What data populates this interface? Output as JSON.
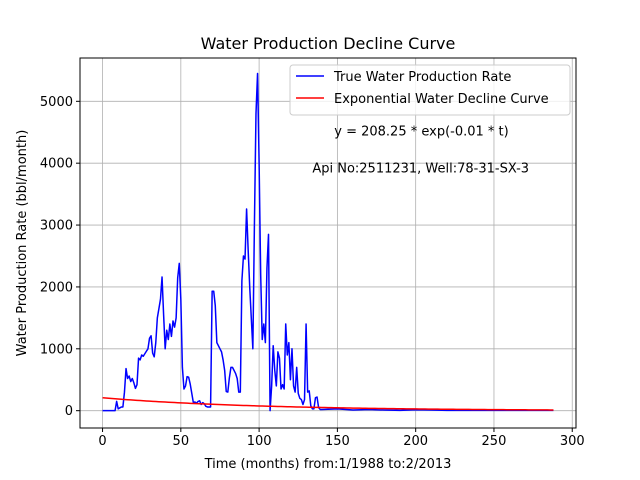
{
  "chart_data": {
    "type": "line",
    "title": "Water Production Decline Curve",
    "xlabel": "Time (months) from:1/1988 to:2/2013",
    "ylabel": "Water Production Rate (bbl/month)",
    "xlim": [
      -14.4,
      302.4
    ],
    "ylim": [
      -280,
      5700
    ],
    "xticks": [
      0,
      50,
      100,
      150,
      200,
      250,
      300
    ],
    "yticks": [
      0,
      1000,
      2000,
      3000,
      4000,
      5000
    ],
    "grid": true,
    "legend_position": "top-right",
    "annotations": [
      {
        "text": "y = 208.25 * exp(-0.01 * t)",
        "x": 148,
        "y": 4450
      },
      {
        "text": "Api No:2511231, Well:78-31-SX-3",
        "x": 134,
        "y": 3850
      }
    ],
    "series": [
      {
        "name": "True Water Production Rate",
        "color": "#0000ff",
        "points": [
          [
            0,
            0
          ],
          [
            5,
            0
          ],
          [
            8,
            0
          ],
          [
            9,
            150
          ],
          [
            10,
            30
          ],
          [
            12,
            60
          ],
          [
            13,
            60
          ],
          [
            14,
            300
          ],
          [
            15,
            680
          ],
          [
            16,
            520
          ],
          [
            17,
            560
          ],
          [
            18,
            470
          ],
          [
            19,
            520
          ],
          [
            20,
            450
          ],
          [
            21,
            360
          ],
          [
            22,
            420
          ],
          [
            23,
            850
          ],
          [
            24,
            820
          ],
          [
            25,
            900
          ],
          [
            26,
            880
          ],
          [
            27,
            920
          ],
          [
            28,
            960
          ],
          [
            29,
            1000
          ],
          [
            30,
            1170
          ],
          [
            31,
            1210
          ],
          [
            32,
            930
          ],
          [
            33,
            870
          ],
          [
            34,
            1100
          ],
          [
            35,
            1500
          ],
          [
            36,
            1650
          ],
          [
            37,
            1800
          ],
          [
            38,
            2160
          ],
          [
            39,
            1550
          ],
          [
            40,
            1000
          ],
          [
            41,
            1300
          ],
          [
            42,
            1150
          ],
          [
            43,
            1400
          ],
          [
            44,
            1200
          ],
          [
            45,
            1450
          ],
          [
            46,
            1350
          ],
          [
            47,
            1500
          ],
          [
            48,
            2150
          ],
          [
            49,
            2380
          ],
          [
            50,
            1800
          ],
          [
            51,
            700
          ],
          [
            52,
            350
          ],
          [
            53,
            400
          ],
          [
            54,
            550
          ],
          [
            55,
            540
          ],
          [
            56,
            430
          ],
          [
            57,
            280
          ],
          [
            58,
            130
          ],
          [
            59,
            140
          ],
          [
            60,
            120
          ],
          [
            61,
            150
          ],
          [
            62,
            160
          ],
          [
            63,
            100
          ],
          [
            64,
            130
          ],
          [
            65,
            110
          ],
          [
            66,
            70
          ],
          [
            67,
            60
          ],
          [
            68,
            60
          ],
          [
            69,
            60
          ],
          [
            70,
            1930
          ],
          [
            71,
            1930
          ],
          [
            72,
            1700
          ],
          [
            73,
            1100
          ],
          [
            74,
            1050
          ],
          [
            75,
            1000
          ],
          [
            76,
            950
          ],
          [
            77,
            820
          ],
          [
            78,
            650
          ],
          [
            79,
            310
          ],
          [
            80,
            300
          ],
          [
            81,
            530
          ],
          [
            82,
            700
          ],
          [
            83,
            700
          ],
          [
            84,
            650
          ],
          [
            85,
            600
          ],
          [
            86,
            520
          ],
          [
            87,
            300
          ],
          [
            88,
            300
          ],
          [
            89,
            2100
          ],
          [
            90,
            2500
          ],
          [
            91,
            2450
          ],
          [
            92,
            3260
          ],
          [
            93,
            2600
          ],
          [
            94,
            2000
          ],
          [
            95,
            1500
          ],
          [
            96,
            1000
          ],
          [
            97,
            3000
          ],
          [
            98,
            4800
          ],
          [
            99,
            5450
          ],
          [
            100,
            4000
          ],
          [
            101,
            2200
          ],
          [
            102,
            1150
          ],
          [
            103,
            1400
          ],
          [
            104,
            1100
          ],
          [
            105,
            2300
          ],
          [
            106,
            2850
          ],
          [
            107,
            0
          ],
          [
            108,
            400
          ],
          [
            109,
            1050
          ],
          [
            110,
            650
          ],
          [
            111,
            400
          ],
          [
            112,
            950
          ],
          [
            113,
            850
          ],
          [
            114,
            350
          ],
          [
            115,
            420
          ],
          [
            116,
            350
          ],
          [
            117,
            1400
          ],
          [
            118,
            900
          ],
          [
            119,
            1100
          ],
          [
            120,
            500
          ],
          [
            121,
            1000
          ],
          [
            122,
            400
          ],
          [
            123,
            300
          ],
          [
            124,
            700
          ],
          [
            125,
            280
          ],
          [
            126,
            200
          ],
          [
            127,
            180
          ],
          [
            128,
            100
          ],
          [
            129,
            180
          ],
          [
            130,
            1400
          ],
          [
            131,
            300
          ],
          [
            132,
            320
          ],
          [
            133,
            80
          ],
          [
            134,
            30
          ],
          [
            135,
            30
          ],
          [
            136,
            210
          ],
          [
            137,
            220
          ],
          [
            138,
            50
          ],
          [
            139,
            20
          ],
          [
            140,
            20
          ],
          [
            150,
            30
          ],
          [
            160,
            10
          ],
          [
            170,
            20
          ],
          [
            180,
            10
          ],
          [
            190,
            5
          ],
          [
            200,
            15
          ],
          [
            210,
            10
          ],
          [
            220,
            5
          ],
          [
            230,
            5
          ],
          [
            240,
            5
          ],
          [
            250,
            5
          ],
          [
            260,
            5
          ],
          [
            270,
            5
          ],
          [
            280,
            5
          ],
          [
            288,
            5
          ]
        ]
      },
      {
        "name": "Exponential Water Decline Curve",
        "color": "#ff0000",
        "equation": {
          "a": 208.25,
          "b": 0.01
        },
        "x_range": [
          0,
          288
        ]
      }
    ]
  }
}
